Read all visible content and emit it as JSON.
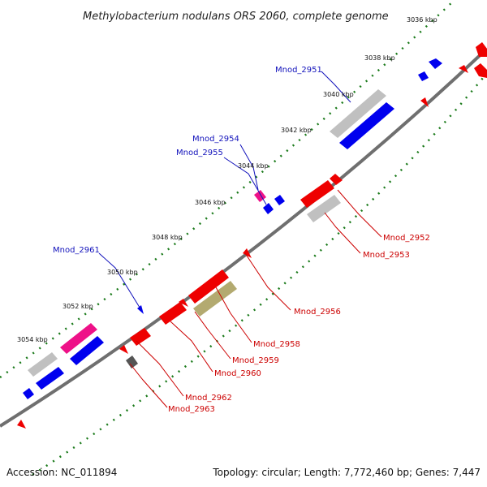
{
  "title": "Methylobacterium nodulans ORS 2060, complete genome",
  "footer": {
    "accession": "Accession: NC_011894",
    "summary": "Topology: circular; Length: 7,772,460 bp; Genes: 7,447"
  },
  "ticks": [
    "3036 kbp",
    "3038 kbp",
    "3040 kbp",
    "3042 kbp",
    "3044 kbp",
    "3046 kbp",
    "3048 kbp",
    "3050 kbp",
    "3052 kbp",
    "3054 kbp"
  ],
  "gene_labels": {
    "top": [
      "Mnod_2951",
      "Mnod_2954",
      "Mnod_2955",
      "Mnod_2961"
    ],
    "bottom": [
      "Mnod_2952",
      "Mnod_2953",
      "Mnod_2956",
      "Mnod_2958",
      "Mnod_2959",
      "Mnod_2960",
      "Mnod_2962",
      "Mnod_2963"
    ]
  },
  "colors": {
    "forward": "#0000ee",
    "reverse": "#ee0000",
    "pseudo": "#bbbbbb",
    "rna": "#ee1188",
    "olive": "#b3aa70",
    "dark": "#555555",
    "backbone": "#777777",
    "dots": "#1a7a1a",
    "label_top": "#1111bb",
    "label_bottom": "#cc0000"
  }
}
